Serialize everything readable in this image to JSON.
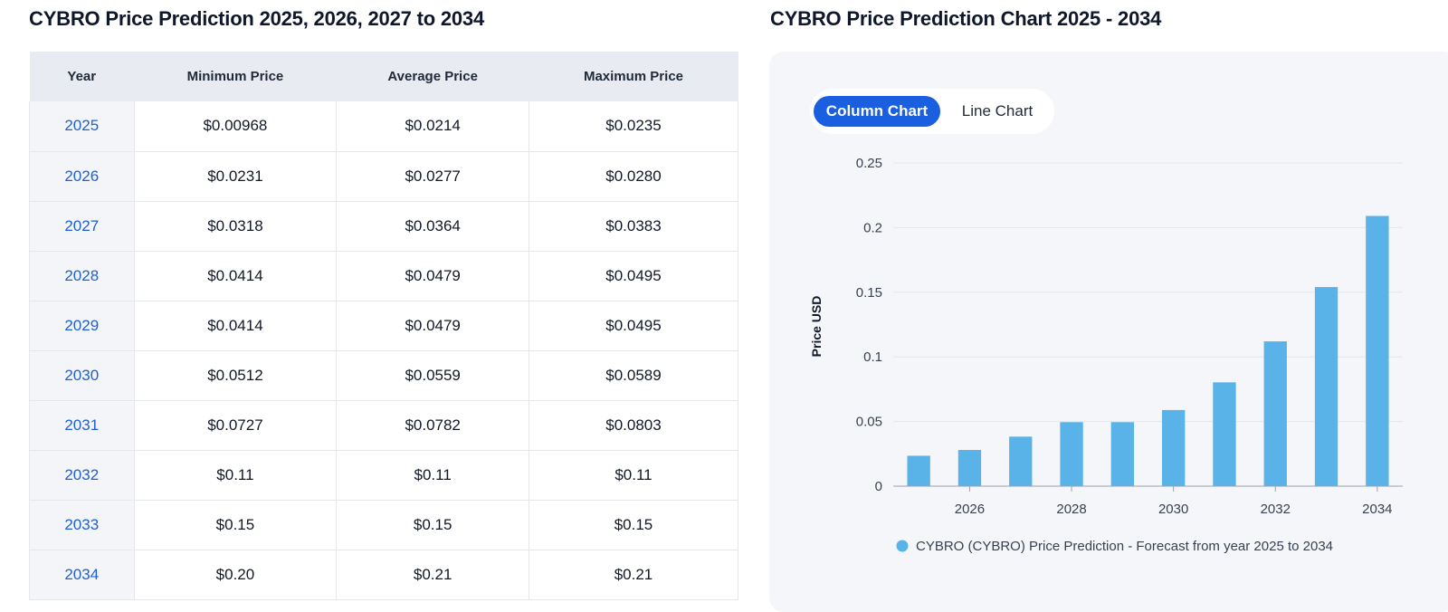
{
  "table": {
    "title": "CYBRO Price Prediction 2025, 2026, 2027 to 2034",
    "headers": [
      "Year",
      "Minimum Price",
      "Average Price",
      "Maximum Price"
    ],
    "rows": [
      [
        "2025",
        "$0.00968",
        "$0.0214",
        "$0.0235"
      ],
      [
        "2026",
        "$0.0231",
        "$0.0277",
        "$0.0280"
      ],
      [
        "2027",
        "$0.0318",
        "$0.0364",
        "$0.0383"
      ],
      [
        "2028",
        "$0.0414",
        "$0.0479",
        "$0.0495"
      ],
      [
        "2029",
        "$0.0414",
        "$0.0479",
        "$0.0495"
      ],
      [
        "2030",
        "$0.0512",
        "$0.0559",
        "$0.0589"
      ],
      [
        "2031",
        "$0.0727",
        "$0.0782",
        "$0.0803"
      ],
      [
        "2032",
        "$0.11",
        "$0.11",
        "$0.11"
      ],
      [
        "2033",
        "$0.15",
        "$0.15",
        "$0.15"
      ],
      [
        "2034",
        "$0.20",
        "$0.21",
        "$0.21"
      ]
    ]
  },
  "chart_panel": {
    "title": "CYBRO Price Prediction Chart 2025 - 2034",
    "toggle": {
      "active": "Column Chart",
      "inactive": "Line Chart"
    }
  },
  "colors": {
    "bar": "#5ab3e8",
    "toggle_active": "#1a5fe0",
    "year_link": "#1d5fd6"
  },
  "chart_data": {
    "type": "bar",
    "x": [
      2025,
      2026,
      2027,
      2028,
      2029,
      2030,
      2031,
      2032,
      2033,
      2034
    ],
    "values": [
      0.0235,
      0.028,
      0.0383,
      0.0495,
      0.0495,
      0.0589,
      0.0803,
      0.112,
      0.154,
      0.209
    ],
    "ylabel": "Price USD",
    "xlabel": "",
    "ylim": [
      0,
      0.25
    ],
    "yticks": [
      "0",
      "0.05",
      "0.1",
      "0.15",
      "0.2",
      "0.25"
    ],
    "xticks": [
      "2026",
      "2028",
      "2030",
      "2032",
      "2034"
    ],
    "grid": true,
    "legend": {
      "position": "bottom",
      "label": "CYBRO (CYBRO) Price Prediction - Forecast from year 2025 to 2034"
    }
  }
}
